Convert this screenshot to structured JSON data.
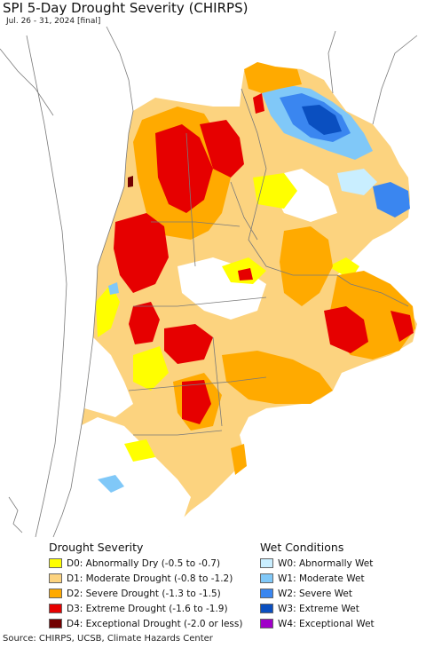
{
  "header": {
    "title": "SPI 5-Day Drought Severity (CHIRPS)",
    "subtitle": "Jul. 26 - 31, 2024 [final]"
  },
  "colors": {
    "ocean": "#ffffff",
    "neighbor_land": "#ffffff",
    "boundary": "#7a7a7a",
    "D0": "#ffff00",
    "D1": "#fcd37f",
    "D2": "#ffaa00",
    "D3": "#e60000",
    "D4": "#730000",
    "W0": "#c9eeff",
    "W1": "#80c8f8",
    "W2": "#3a86f0",
    "W3": "#0a4fc0",
    "W4": "#a000c8"
  },
  "legend": {
    "drought_title": "Drought Severity",
    "wet_title": "Wet Conditions",
    "drought": [
      {
        "key": "D0",
        "label": "D0: Abnormally Dry (-0.5 to -0.7)",
        "color": "#ffff00"
      },
      {
        "key": "D1",
        "label": "D1: Moderate Drought (-0.8 to -1.2)",
        "color": "#fcd37f"
      },
      {
        "key": "D2",
        "label": "D2: Severe Drought (-1.3 to -1.5)",
        "color": "#ffaa00"
      },
      {
        "key": "D3",
        "label": "D3: Extreme Drought (-1.6 to -1.9)",
        "color": "#e60000"
      },
      {
        "key": "D4",
        "label": "D4: Exceptional Drought (-2.0 or less)",
        "color": "#730000"
      }
    ],
    "wet": [
      {
        "key": "W0",
        "label": "W0: Abnormally Wet",
        "color": "#c9eeff"
      },
      {
        "key": "W1",
        "label": "W1: Moderate Wet",
        "color": "#80c8f8"
      },
      {
        "key": "W2",
        "label": "W2: Severe Wet",
        "color": "#3a86f0"
      },
      {
        "key": "W3",
        "label": "W3: Extreme Wet",
        "color": "#0a4fc0"
      },
      {
        "key": "W4",
        "label": "W4: Exceptional Wet",
        "color": "#a000c8"
      }
    ]
  },
  "footer": {
    "source": "Source: CHIRPS, UCSB, Climate Hazards Center"
  }
}
